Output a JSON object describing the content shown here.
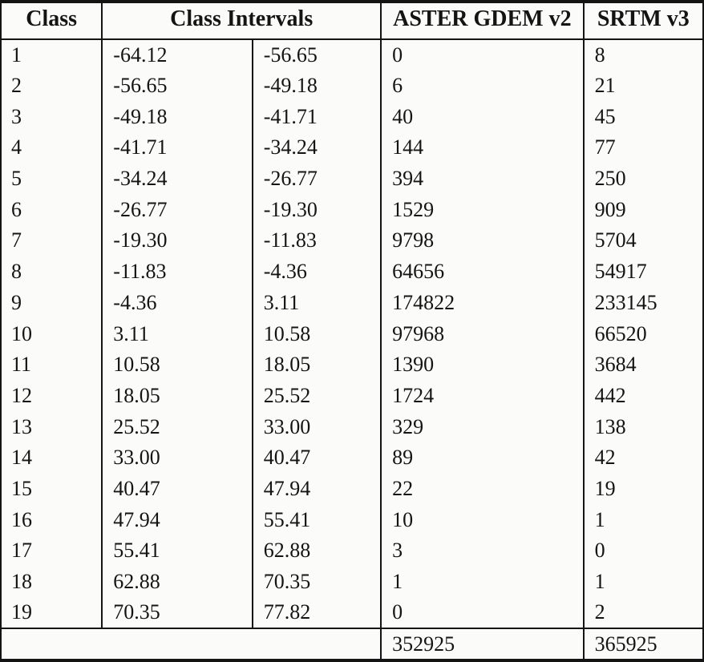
{
  "table": {
    "headers": {
      "class": "Class",
      "intervals": "Class Intervals",
      "aster": "ASTER GDEM v2",
      "srtm": "SRTM v3"
    },
    "rows": [
      {
        "class": "1",
        "low": "-64.12",
        "high": "-56.65",
        "aster": "0",
        "srtm": "8"
      },
      {
        "class": "2",
        "low": "-56.65",
        "high": "-49.18",
        "aster": "6",
        "srtm": "21"
      },
      {
        "class": "3",
        "low": "-49.18",
        "high": "-41.71",
        "aster": "40",
        "srtm": "45"
      },
      {
        "class": "4",
        "low": "-41.71",
        "high": "-34.24",
        "aster": "144",
        "srtm": "77"
      },
      {
        "class": "5",
        "low": "-34.24",
        "high": "-26.77",
        "aster": "394",
        "srtm": "250"
      },
      {
        "class": "6",
        "low": "-26.77",
        "high": "-19.30",
        "aster": "1529",
        "srtm": "909"
      },
      {
        "class": "7",
        "low": "-19.30",
        "high": "-11.83",
        "aster": "9798",
        "srtm": "5704"
      },
      {
        "class": "8",
        "low": "-11.83",
        "high": "-4.36",
        "aster": "64656",
        "srtm": "54917"
      },
      {
        "class": "9",
        "low": "-4.36",
        "high": "3.11",
        "aster": "174822",
        "srtm": "233145"
      },
      {
        "class": "10",
        "low": "3.11",
        "high": "10.58",
        "aster": "97968",
        "srtm": "66520"
      },
      {
        "class": "11",
        "low": "10.58",
        "high": "18.05",
        "aster": "1390",
        "srtm": "3684"
      },
      {
        "class": "12",
        "low": "18.05",
        "high": "25.52",
        "aster": "1724",
        "srtm": "442"
      },
      {
        "class": "13",
        "low": "25.52",
        "high": "33.00",
        "aster": "329",
        "srtm": "138"
      },
      {
        "class": "14",
        "low": "33.00",
        "high": "40.47",
        "aster": "89",
        "srtm": "42"
      },
      {
        "class": "15",
        "low": "40.47",
        "high": "47.94",
        "aster": "22",
        "srtm": "19"
      },
      {
        "class": "16",
        "low": "47.94",
        "high": "55.41",
        "aster": "10",
        "srtm": "1"
      },
      {
        "class": "17",
        "low": "55.41",
        "high": "62.88",
        "aster": "3",
        "srtm": "0"
      },
      {
        "class": "18",
        "low": "62.88",
        "high": "70.35",
        "aster": "1",
        "srtm": "1"
      },
      {
        "class": "19",
        "low": "70.35",
        "high": "77.82",
        "aster": "0",
        "srtm": "2"
      }
    ],
    "totals": {
      "aster": "352925",
      "srtm": "365925"
    }
  },
  "colors": {
    "text": "#141414",
    "border": "#141414",
    "background": "#fbfbfa"
  }
}
